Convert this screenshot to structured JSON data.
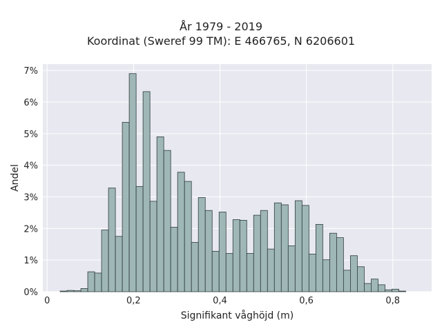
{
  "chart_data": {
    "type": "bar",
    "title": "År 1979 - 2019",
    "subtitle": "Koordinat (Sweref 99 TM): E 466765, N 6206601",
    "xlabel": "Signifikant våghöjd (m)",
    "ylabel": "Andel",
    "xlim": [
      -0.01,
      0.89
    ],
    "ylim": [
      0,
      7.2
    ],
    "x_ticks": [
      0,
      0.2,
      0.4,
      0.6,
      0.8
    ],
    "x_tick_labels": [
      "0",
      "0,2",
      "0,4",
      "0,6",
      "0,8"
    ],
    "y_ticks": [
      0,
      1,
      2,
      3,
      4,
      5,
      6,
      7
    ],
    "y_tick_labels": [
      "0%",
      "1%",
      "2%",
      "3%",
      "4%",
      "5%",
      "6%",
      "7%"
    ],
    "bin_width": 0.016,
    "bin_start": 0.03,
    "values": [
      0.02,
      0.04,
      0.03,
      0.1,
      0.63,
      0.59,
      1.95,
      3.28,
      1.75,
      5.36,
      6.9,
      3.33,
      6.33,
      2.86,
      4.9,
      4.47,
      2.04,
      3.78,
      3.49,
      1.56,
      2.98,
      2.57,
      1.28,
      2.52,
      1.21,
      2.28,
      2.26,
      1.21,
      2.42,
      2.57,
      1.35,
      2.81,
      2.75,
      1.45,
      2.88,
      2.73,
      1.19,
      2.13,
      1.01,
      1.85,
      1.71,
      0.68,
      1.14,
      0.79,
      0.26,
      0.4,
      0.22,
      0.06,
      0.08,
      0.02
    ],
    "grid": true,
    "colors": {
      "background": "#e8e9f0",
      "grid": "#ffffff",
      "bar_fill": "#9fb7b7",
      "bar_stroke": "#2e3a3a"
    }
  }
}
